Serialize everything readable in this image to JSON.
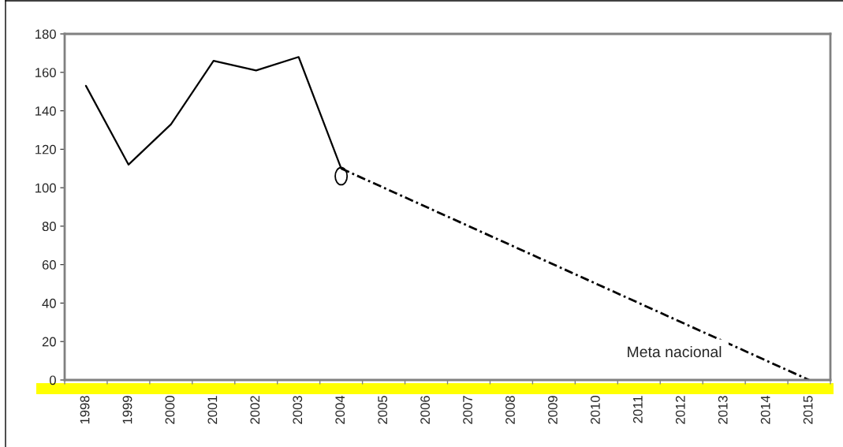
{
  "chart_data": {
    "type": "line",
    "categories": [
      "1998",
      "1999",
      "2000",
      "2001",
      "2002",
      "2003",
      "2004",
      "2005",
      "2006",
      "2007",
      "2008",
      "2009",
      "2010",
      "2011",
      "2012",
      "2013",
      "2014",
      "2015"
    ],
    "series": [
      {
        "color": "#000000",
        "line_style": "solid",
        "values": [
          153,
          112,
          133,
          166,
          161,
          168,
          110,
          null,
          null,
          null,
          null,
          null,
          null,
          null,
          null,
          null,
          null,
          null
        ]
      },
      {
        "color": "#000000",
        "line_style": "dashed",
        "values": [
          null,
          null,
          null,
          null,
          null,
          null,
          110,
          null,
          null,
          null,
          null,
          null,
          null,
          null,
          null,
          null,
          null,
          0
        ]
      }
    ],
    "ylim": [
      0,
      180
    ],
    "yticks": [
      0,
      20,
      40,
      60,
      80,
      100,
      120,
      140,
      160,
      180
    ],
    "grid": false,
    "legend": false,
    "marker": "none",
    "annotations": [
      "Meta nacional"
    ]
  }
}
